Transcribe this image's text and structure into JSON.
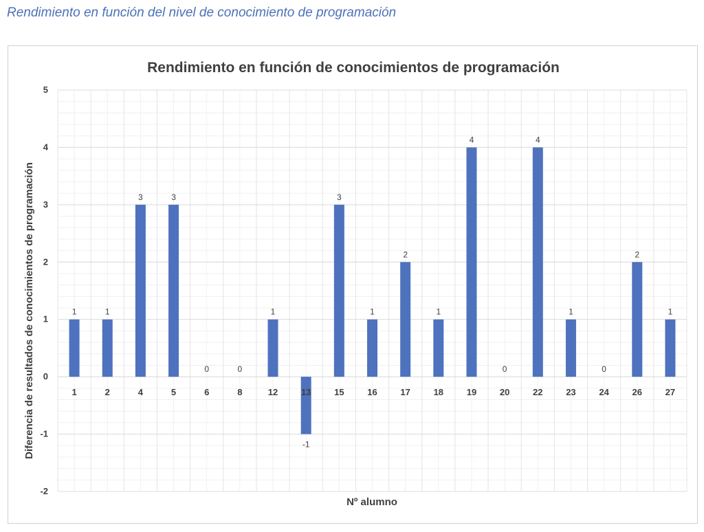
{
  "caption": "Rendimiento en función del nivel de conocimiento de programación",
  "chart_data": {
    "type": "bar",
    "title": "Rendimiento en función de conocimientos de programación",
    "xlabel": "Nº alumno",
    "ylabel": "Diferencia de resultados de conocimientos de programación",
    "categories": [
      "1",
      "2",
      "4",
      "5",
      "6",
      "8",
      "12",
      "13",
      "15",
      "16",
      "17",
      "18",
      "19",
      "20",
      "22",
      "23",
      "24",
      "26",
      "27"
    ],
    "values": [
      1,
      1,
      3,
      3,
      0,
      0,
      1,
      -1,
      3,
      1,
      2,
      1,
      4,
      0,
      4,
      1,
      0,
      2,
      1
    ],
    "ylim": [
      -2,
      5
    ],
    "yticks": [
      "-2",
      "-1",
      "0",
      "1",
      "2",
      "3",
      "4",
      "5"
    ],
    "grid": true,
    "bar_color": "#4e72be",
    "data_labels": true
  }
}
